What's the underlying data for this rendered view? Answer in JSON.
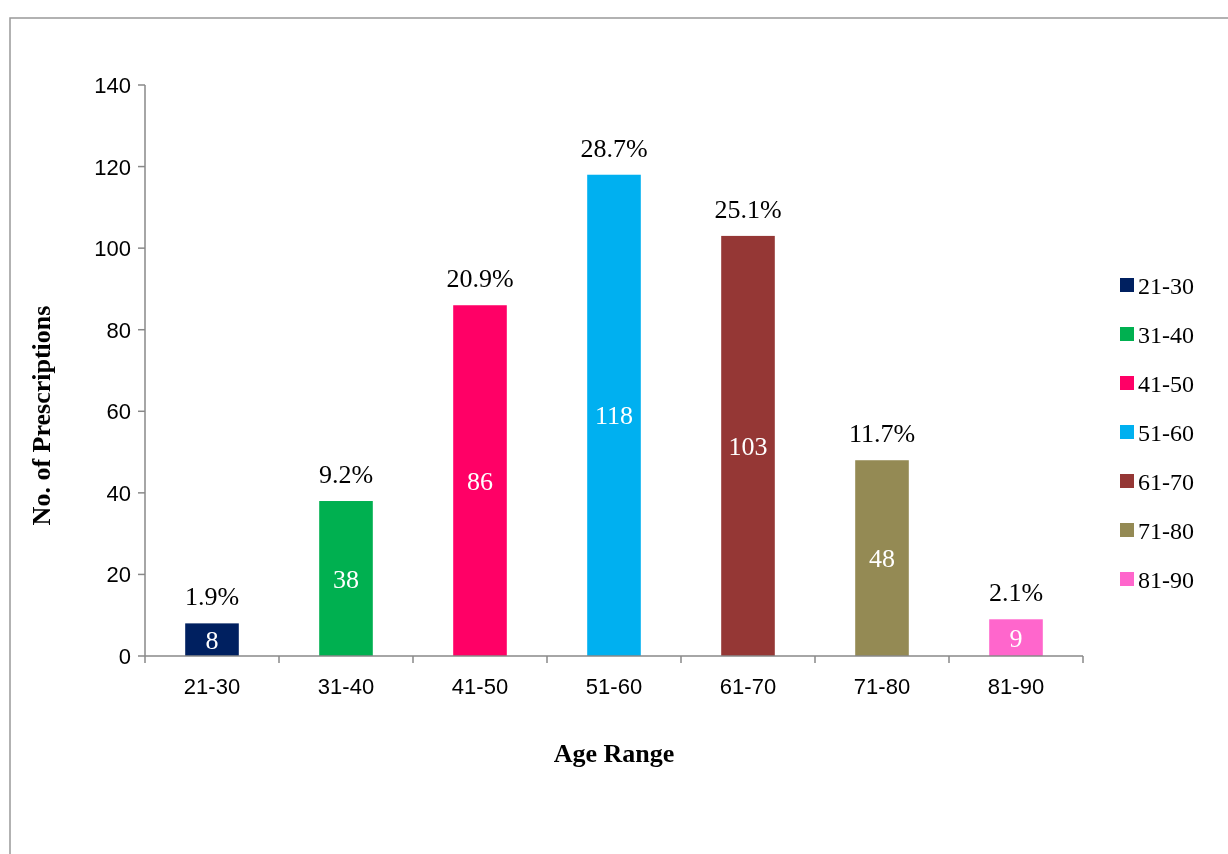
{
  "chart_data": {
    "type": "bar",
    "xlabel": "Age Range",
    "ylabel": "No. of Prescriptions",
    "categories": [
      "21-30",
      "31-40",
      "41-50",
      "51-60",
      "61-70",
      "71-80",
      "81-90"
    ],
    "series": [
      {
        "name": "21-30",
        "color": "#002060",
        "values": [
          8,
          null,
          null,
          null,
          null,
          null,
          null
        ]
      },
      {
        "name": "31-40",
        "color": "#00b050",
        "values": [
          null,
          38,
          null,
          null,
          null,
          null,
          null
        ]
      },
      {
        "name": "41-50",
        "color": "#ff0066",
        "values": [
          null,
          null,
          86,
          null,
          null,
          null,
          null
        ]
      },
      {
        "name": "51-60",
        "color": "#00b0f0",
        "values": [
          null,
          null,
          null,
          118,
          null,
          null,
          null
        ]
      },
      {
        "name": "61-70",
        "color": "#953735",
        "values": [
          null,
          null,
          null,
          null,
          103,
          null,
          null
        ]
      },
      {
        "name": "71-80",
        "color": "#948a54",
        "values": [
          null,
          null,
          null,
          null,
          null,
          48,
          null
        ]
      },
      {
        "name": "81-90",
        "color": "#ff66cc",
        "values": [
          null,
          null,
          null,
          null,
          null,
          null,
          9
        ]
      }
    ],
    "ylim": [
      0,
      140
    ],
    "yticks": [
      0,
      20,
      40,
      60,
      80,
      100,
      120,
      140
    ],
    "legend": "right",
    "data_labels": true,
    "annotations": [
      {
        "text": "1.9%",
        "x": "21-30",
        "y": 8
      },
      {
        "text": "9.2%",
        "x": "31-40",
        "y": 38
      },
      {
        "text": "20.9%",
        "x": "41-50",
        "y": 86
      },
      {
        "text": "28.7%",
        "x": "51-60",
        "y": 118
      },
      {
        "text": "25.1%",
        "x": "61-70",
        "y": 103
      },
      {
        "text": "11.7%",
        "x": "71-80",
        "y": 48
      },
      {
        "text": "2.1%",
        "x": "81-90",
        "y": 9
      }
    ]
  }
}
